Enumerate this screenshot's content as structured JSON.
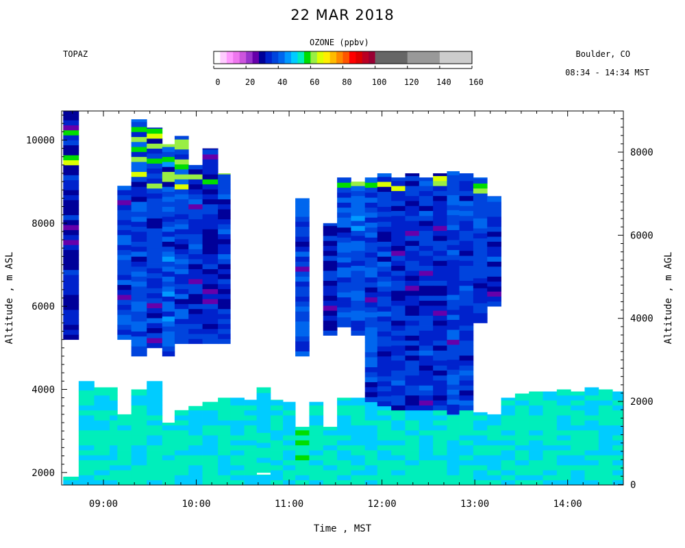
{
  "header": {
    "title": "22 MAR 2018",
    "station": "TOPAZ",
    "location": "Boulder, CO",
    "time_range": "08:34 - 14:34 MST"
  },
  "colorbar": {
    "title": "OZONE (ppbv)",
    "ticks": [
      0,
      20,
      40,
      60,
      80,
      100,
      120,
      140,
      160
    ],
    "bins": [
      {
        "from": 0,
        "to": 4,
        "color": "#ffffff"
      },
      {
        "from": 4,
        "to": 8,
        "color": "#ffccff"
      },
      {
        "from": 8,
        "to": 12,
        "color": "#ff99ff"
      },
      {
        "from": 12,
        "to": 16,
        "color": "#ee77ee"
      },
      {
        "from": 16,
        "to": 20,
        "color": "#cc55dd"
      },
      {
        "from": 20,
        "to": 24,
        "color": "#9933cc"
      },
      {
        "from": 24,
        "to": 28,
        "color": "#6600aa"
      },
      {
        "from": 28,
        "to": 32,
        "color": "#000099"
      },
      {
        "from": 32,
        "to": 36,
        "color": "#0022cc"
      },
      {
        "from": 36,
        "to": 40,
        "color": "#0044dd"
      },
      {
        "from": 40,
        "to": 44,
        "color": "#0066ee"
      },
      {
        "from": 44,
        "to": 48,
        "color": "#0099ff"
      },
      {
        "from": 48,
        "to": 52,
        "color": "#00ccff"
      },
      {
        "from": 52,
        "to": 56,
        "color": "#00eebb"
      },
      {
        "from": 56,
        "to": 60,
        "color": "#00dd00"
      },
      {
        "from": 60,
        "to": 64,
        "color": "#99ee44"
      },
      {
        "from": 64,
        "to": 68,
        "color": "#ddff00"
      },
      {
        "from": 68,
        "to": 72,
        "color": "#ffee00"
      },
      {
        "from": 72,
        "to": 76,
        "color": "#ffbb00"
      },
      {
        "from": 76,
        "to": 80,
        "color": "#ff8800"
      },
      {
        "from": 80,
        "to": 84,
        "color": "#ff5500"
      },
      {
        "from": 84,
        "to": 88,
        "color": "#ff0000"
      },
      {
        "from": 88,
        "to": 92,
        "color": "#dd0000"
      },
      {
        "from": 92,
        "to": 96,
        "color": "#bb0022"
      },
      {
        "from": 96,
        "to": 100,
        "color": "#990033"
      },
      {
        "from": 100,
        "to": 120,
        "color": "#666666"
      },
      {
        "from": 120,
        "to": 140,
        "color": "#999999"
      },
      {
        "from": 140,
        "to": 160,
        "color": "#cccccc"
      }
    ]
  },
  "chart_data": {
    "type": "heatmap",
    "xlabel": "Time , MST",
    "ylabel_left": "Altitude , m ASL",
    "ylabel_right": "Altitude , m AGL",
    "x_range_hours": [
      8.55,
      14.6
    ],
    "y_range_asl": [
      1700,
      10700
    ],
    "y_range_agl": [
      -10,
      8990
    ],
    "x_ticks": [
      "09:00",
      "10:00",
      "11:00",
      "12:00",
      "13:00",
      "14:00"
    ],
    "y_ticks_left": [
      2000,
      4000,
      6000,
      8000,
      10000
    ],
    "y_ticks_right": [
      0,
      2000,
      4000,
      6000,
      8000
    ],
    "columns": [
      {
        "t": "08:34",
        "segments": [
          [
            1700,
            1900,
            52
          ],
          [
            5200,
            10700,
            32
          ]
        ]
      },
      {
        "t": "08:44",
        "segments": [
          [
            1700,
            4200,
            52
          ]
        ]
      },
      {
        "t": "08:54",
        "segments": [
          [
            1700,
            4050,
            52
          ]
        ]
      },
      {
        "t": "09:04",
        "segments": [
          [
            1700,
            4050,
            52
          ]
        ]
      },
      {
        "t": "09:09",
        "segments": [
          [
            1700,
            3400,
            54
          ],
          [
            5200,
            8900,
            38
          ]
        ]
      },
      {
        "t": "09:18",
        "segments": [
          [
            1700,
            4000,
            52
          ],
          [
            4800,
            10500,
            38
          ]
        ]
      },
      {
        "t": "09:28",
        "segments": [
          [
            1700,
            4200,
            52
          ],
          [
            5000,
            10300,
            36
          ]
        ]
      },
      {
        "t": "09:38",
        "segments": [
          [
            1700,
            3200,
            53
          ],
          [
            4800,
            9900,
            40
          ]
        ]
      },
      {
        "t": "09:46",
        "segments": [
          [
            1700,
            3500,
            53
          ],
          [
            5100,
            10100,
            38
          ]
        ]
      },
      {
        "t": "09:55",
        "segments": [
          [
            1700,
            3600,
            52
          ],
          [
            5100,
            9400,
            36
          ]
        ]
      },
      {
        "t": "10:04",
        "segments": [
          [
            1700,
            3700,
            53
          ],
          [
            5100,
            9800,
            34
          ]
        ]
      },
      {
        "t": "10:14",
        "segments": [
          [
            1700,
            3800,
            52
          ],
          [
            5100,
            9200,
            36
          ]
        ]
      },
      {
        "t": "10:22",
        "segments": [
          [
            1700,
            3800,
            53
          ]
        ]
      },
      {
        "t": "10:31",
        "segments": [
          [
            1700,
            3750,
            52
          ]
        ]
      },
      {
        "t": "10:39",
        "segments": [
          [
            1700,
            1950,
            53
          ],
          [
            2000,
            4050,
            52
          ]
        ]
      },
      {
        "t": "10:48",
        "segments": [
          [
            1700,
            3750,
            53
          ]
        ]
      },
      {
        "t": "10:56",
        "segments": [
          [
            1700,
            3700,
            52
          ]
        ]
      },
      {
        "t": "11:04",
        "segments": [
          [
            1700,
            3100,
            54
          ],
          [
            4800,
            8600,
            38
          ]
        ]
      },
      {
        "t": "11:13",
        "segments": [
          [
            1700,
            3700,
            52
          ]
        ]
      },
      {
        "t": "11:22",
        "segments": [
          [
            1700,
            3100,
            53
          ],
          [
            5300,
            8000,
            34
          ]
        ]
      },
      {
        "t": "11:31",
        "segments": [
          [
            1700,
            3800,
            52
          ],
          [
            5500,
            9100,
            38
          ]
        ]
      },
      {
        "t": "11:40",
        "segments": [
          [
            1700,
            3800,
            53
          ],
          [
            5300,
            9000,
            40
          ]
        ]
      },
      {
        "t": "11:49",
        "segments": [
          [
            1700,
            3700,
            52
          ],
          [
            3700,
            9100,
            38
          ]
        ]
      },
      {
        "t": "11:57",
        "segments": [
          [
            1700,
            3600,
            53
          ],
          [
            3600,
            9200,
            36
          ]
        ]
      },
      {
        "t": "12:06",
        "segments": [
          [
            1700,
            3500,
            52
          ],
          [
            3500,
            9100,
            36
          ]
        ]
      },
      {
        "t": "12:15",
        "segments": [
          [
            1700,
            3500,
            53
          ],
          [
            3500,
            9200,
            34
          ]
        ]
      },
      {
        "t": "12:24",
        "segments": [
          [
            1700,
            3500,
            52
          ],
          [
            3500,
            9100,
            36
          ]
        ]
      },
      {
        "t": "12:33",
        "segments": [
          [
            1700,
            3500,
            53
          ],
          [
            3500,
            9200,
            34
          ]
        ]
      },
      {
        "t": "12:42",
        "segments": [
          [
            1700,
            3400,
            52
          ],
          [
            3400,
            9250,
            38
          ]
        ]
      },
      {
        "t": "12:50",
        "segments": [
          [
            1700,
            3500,
            53
          ],
          [
            3500,
            9200,
            36
          ]
        ]
      },
      {
        "t": "12:59",
        "segments": [
          [
            1700,
            3450,
            52
          ],
          [
            5600,
            9100,
            38
          ]
        ]
      },
      {
        "t": "13:08",
        "segments": [
          [
            1700,
            3400,
            53
          ],
          [
            6000,
            8650,
            36
          ]
        ]
      },
      {
        "t": "13:17",
        "segments": [
          [
            1700,
            3800,
            52
          ]
        ]
      },
      {
        "t": "13:26",
        "segments": [
          [
            1700,
            3900,
            53
          ]
        ]
      },
      {
        "t": "13:35",
        "segments": [
          [
            1700,
            3950,
            52
          ]
        ]
      },
      {
        "t": "13:44",
        "segments": [
          [
            1700,
            3950,
            53
          ]
        ]
      },
      {
        "t": "13:53",
        "segments": [
          [
            1700,
            4000,
            52
          ]
        ]
      },
      {
        "t": "14:02",
        "segments": [
          [
            1700,
            3950,
            53
          ]
        ]
      },
      {
        "t": "14:11",
        "segments": [
          [
            1700,
            4050,
            52
          ]
        ]
      },
      {
        "t": "14:20",
        "segments": [
          [
            1700,
            4000,
            53
          ]
        ]
      },
      {
        "t": "14:29",
        "segments": [
          [
            1700,
            3950,
            52
          ]
        ]
      }
    ]
  }
}
